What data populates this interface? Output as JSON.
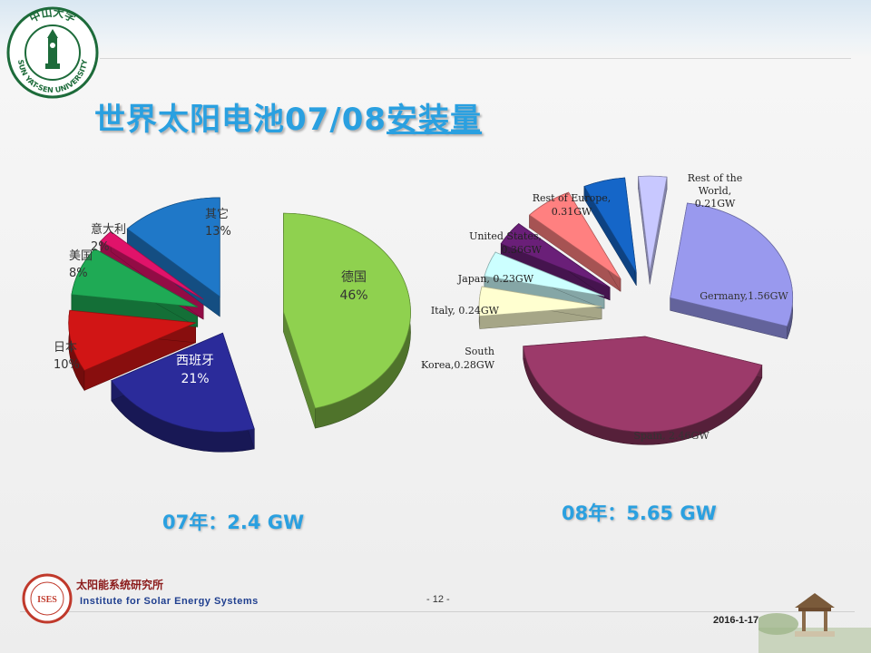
{
  "slide": {
    "title_plain": "世界太阳电池07/08",
    "title_underlined": "安装量",
    "page_number": "- 12 -",
    "date": "2016-1-17"
  },
  "university_logo": {
    "name_cn": "中山大学",
    "name_en": "SUN YAT-SEN UNIVERSITY"
  },
  "institute": {
    "name_cn": "太阳能系统研究所",
    "name_en": "Institute for Solar Energy Systems",
    "logo_text": "ISES"
  },
  "totals": {
    "y2007": "07年：2.4 GW",
    "y2008": "08年：5.65 GW"
  },
  "chart_data": [
    {
      "type": "pie",
      "style": "3d-exploded",
      "year": "07",
      "slices": [
        {
          "label": "德国",
          "value": 46,
          "value_text": "46%",
          "color": "#8fd14f"
        },
        {
          "label": "西班牙",
          "value": 21,
          "value_text": "21%",
          "color": "#2b2b9a"
        },
        {
          "label": "日本",
          "value": 10,
          "value_text": "10%",
          "color": "#d11515"
        },
        {
          "label": "美国",
          "value": 8,
          "value_text": "8%",
          "color": "#1faa55"
        },
        {
          "label": "意大利",
          "value": 2,
          "value_text": "2%",
          "color": "#e0136a"
        },
        {
          "label": "其它",
          "value": 13,
          "value_text": "13%",
          "color": "#1f78c8"
        }
      ]
    },
    {
      "type": "pie",
      "style": "3d-exploded",
      "year": "08",
      "unit": "GW",
      "slices": [
        {
          "label": "Germany,1.56GW",
          "value": 1.56,
          "color": "#9999ee"
        },
        {
          "label": "Spain, 2.46GW",
          "value": 2.46,
          "color": "#9c3a6a"
        },
        {
          "label": "South Korea,0.28GW",
          "value": 0.28,
          "color": "#ffffd0"
        },
        {
          "label": "Italy, 0.24GW",
          "value": 0.24,
          "color": "#ccffff"
        },
        {
          "label": "Japan, 0.23GW",
          "value": 0.23,
          "color": "#6a1f78"
        },
        {
          "label": "United States, 0.36GW",
          "value": 0.36,
          "color": "#ff8080"
        },
        {
          "label": "Rest of Europe, 0.31GW",
          "value": 0.31,
          "color": "#1566c8"
        },
        {
          "label": "Rest of the World, 0.21GW",
          "value": 0.21,
          "color": "#c8c8ff"
        }
      ]
    }
  ]
}
